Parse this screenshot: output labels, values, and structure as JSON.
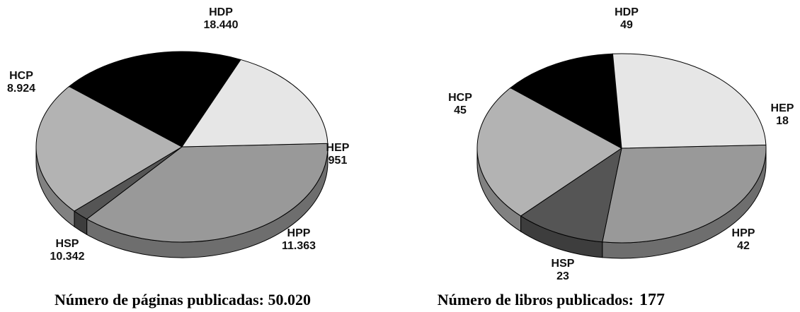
{
  "chart_data": [
    {
      "type": "pie",
      "title": "Número de páginas publicadas:  50.020",
      "slices": [
        {
          "label": "HDP",
          "value_label": "18.440",
          "value": 18440,
          "color": "#999999"
        },
        {
          "label": "HEP",
          "value_label": "951",
          "value": 951,
          "color": "#555555"
        },
        {
          "label": "HPP",
          "value_label": "11.363",
          "value": 11363,
          "color": "#b3b3b3"
        },
        {
          "label": "HSP",
          "value_label": "10.342",
          "value": 10342,
          "color": "#000000"
        },
        {
          "label": "HCP",
          "value_label": "8.924",
          "value": 8924,
          "color": "#e6e6e6"
        }
      ]
    },
    {
      "type": "pie",
      "title": "Número de libros publicados:",
      "total": "177",
      "slices": [
        {
          "label": "HDP",
          "value_label": "49",
          "value": 49,
          "color": "#999999"
        },
        {
          "label": "HEP",
          "value_label": "18",
          "value": 18,
          "color": "#555555"
        },
        {
          "label": "HPP",
          "value_label": "42",
          "value": 42,
          "color": "#b3b3b3"
        },
        {
          "label": "HSP",
          "value_label": "23",
          "value": 23,
          "color": "#000000"
        },
        {
          "label": "HCP",
          "value_label": "45",
          "value": 45,
          "color": "#e6e6e6"
        }
      ]
    }
  ]
}
